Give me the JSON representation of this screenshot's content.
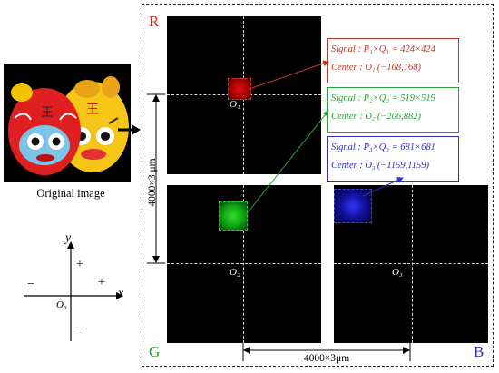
{
  "original_image": {
    "caption": "Original image"
  },
  "panels": {
    "r": {
      "letter": "R",
      "origin_label": "O₁",
      "color": "#c0392b"
    },
    "g": {
      "letter": "G",
      "origin_label": "O₂",
      "color": "#27a33a"
    },
    "b": {
      "letter": "B",
      "origin_label": "O₃",
      "color": "#2e2ec8"
    }
  },
  "annotations": [
    {
      "signal": "Signal : P₁×Q₁ = 424×424",
      "center": "Center : O₁′(−168,168)",
      "color": "#c0392b"
    },
    {
      "signal": "Signal : P₂×Q₂ = 519×519",
      "center": "Center : O₂′(−206,882)",
      "color": "#27a33a"
    },
    {
      "signal": "Signal : P₃×Q₃ = 681×681",
      "center": "Center : O₃′(−1159,1159)",
      "color": "#2e2ec8"
    }
  ],
  "dimensions": {
    "vertical": "4000×3 μm",
    "horizontal": "4000×3μm"
  },
  "axes": {
    "x_label": "x",
    "y_label": "y",
    "origin_label": "O₃",
    "plus": "+",
    "minus": "−"
  }
}
